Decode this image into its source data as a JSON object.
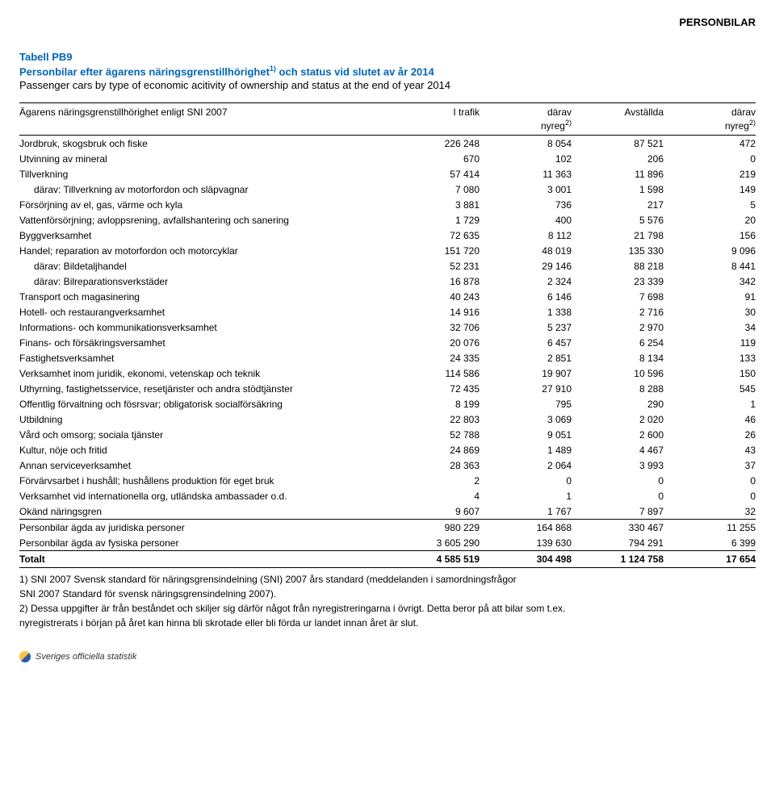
{
  "page_header": "PERSONBILAR",
  "title": "Tabell PB9",
  "subtitle_sv": "Personbilar efter ägarens näringsgrenstillhörighet",
  "subtitle_sv_sup": "1)",
  "subtitle_sv_tail": " och status vid slutet av år 2014",
  "subtitle_en": "Passenger cars by type of economic acitivity of ownership and status at the end of year 2014",
  "header": {
    "col1_a": "Ägarens näringsgrenstillhörighet enligt SNI 2007",
    "col2_a": "I trafik",
    "col3_a": "därav",
    "col4_a": "Avställda",
    "col5_a": "därav",
    "col3_b": "nyreg",
    "col3_b_sup": "2)",
    "col5_b": "nyreg",
    "col5_b_sup": "2)"
  },
  "rows": [
    {
      "label": "Jordbruk, skogsbruk och fiske",
      "v": [
        "226 248",
        "8 054",
        "87 521",
        "472"
      ]
    },
    {
      "label": "Utvinning av mineral",
      "v": [
        "670",
        "102",
        "206",
        "0"
      ]
    },
    {
      "label": "Tillverkning",
      "v": [
        "57 414",
        "11 363",
        "11 896",
        "219"
      ]
    },
    {
      "label": "därav: Tillverkning av motorfordon och släpvagnar",
      "indent": true,
      "v": [
        "7 080",
        "3 001",
        "1 598",
        "149"
      ]
    },
    {
      "label": "Försörjning av el, gas, värme och kyla",
      "v": [
        "3 881",
        "736",
        "217",
        "5"
      ]
    },
    {
      "label": "Vattenförsörjning; avloppsrening, avfallshantering och sanering",
      "v": [
        "1 729",
        "400",
        "5 576",
        "20"
      ]
    },
    {
      "label": "Byggverksamhet",
      "v": [
        "72 635",
        "8 112",
        "21 798",
        "156"
      ]
    },
    {
      "label": "Handel; reparation av motorfordon och motorcyklar",
      "v": [
        "151 720",
        "48 019",
        "135 330",
        "9 096"
      ]
    },
    {
      "label": "därav: Bildetaljhandel",
      "indent": true,
      "v": [
        "52 231",
        "29 146",
        "88 218",
        "8 441"
      ]
    },
    {
      "label": "därav: Bilreparationsverkstäder",
      "indent": true,
      "v": [
        "16 878",
        "2 324",
        "23 339",
        "342"
      ]
    },
    {
      "label": "Transport och magasinering",
      "v": [
        "40 243",
        "6 146",
        "7 698",
        "91"
      ]
    },
    {
      "label": "Hotell- och restaurangverksamhet",
      "v": [
        "14 916",
        "1 338",
        "2 716",
        "30"
      ]
    },
    {
      "label": "Informations- och kommunikationsverksamhet",
      "v": [
        "32 706",
        "5 237",
        "2 970",
        "34"
      ]
    },
    {
      "label": "Finans- och försäkringsversamhet",
      "v": [
        "20 076",
        "6 457",
        "6 254",
        "119"
      ]
    },
    {
      "label": "Fastighetsverksamhet",
      "v": [
        "24 335",
        "2 851",
        "8 134",
        "133"
      ]
    },
    {
      "label": "Verksamhet inom juridik, ekonomi, vetenskap och teknik",
      "v": [
        "114 586",
        "19 907",
        "10 596",
        "150"
      ]
    },
    {
      "label": "Uthyrning, fastighetsservice, resetjänster och andra stödtjänster",
      "v": [
        "72 435",
        "27 910",
        "8 288",
        "545"
      ]
    },
    {
      "label": "Offentlig förvaltning och fösrsvar; obligatorisk socialförsäkring",
      "v": [
        "8 199",
        "795",
        "290",
        "1"
      ]
    },
    {
      "label": "Utbildning",
      "v": [
        "22 803",
        "3 069",
        "2 020",
        "46"
      ]
    },
    {
      "label": "Vård och omsorg; sociala tjänster",
      "v": [
        "52 788",
        "9 051",
        "2 600",
        "26"
      ]
    },
    {
      "label": "Kultur, nöje och fritid",
      "v": [
        "24 869",
        "1 489",
        "4 467",
        "43"
      ]
    },
    {
      "label": "Annan serviceverksamhet",
      "v": [
        "28 363",
        "2 064",
        "3 993",
        "37"
      ]
    },
    {
      "label": "Förvärvsarbet i hushåll; hushållens produktion för eget bruk",
      "v": [
        "2",
        "0",
        "0",
        "0"
      ]
    },
    {
      "label": "Verksamhet vid internationella org, utländska ambassader o.d.",
      "v": [
        "4",
        "1",
        "0",
        "0"
      ]
    },
    {
      "label": "Okänd näringsgren",
      "v": [
        "9 607",
        "1 767",
        "7 897",
        "32"
      ]
    }
  ],
  "subtotals": [
    {
      "label": "Personbilar ägda av juridiska personer",
      "v": [
        "980 229",
        "164 868",
        "330 467",
        "11 255"
      ]
    },
    {
      "label": "Personbilar ägda av fysiska personer",
      "v": [
        "3 605 290",
        "139 630",
        "794 291",
        "6 399"
      ]
    }
  ],
  "totals": {
    "label": "Totalt",
    "v": [
      "4 585 519",
      "304 498",
      "1 124 758",
      "17 654"
    ]
  },
  "footnotes": [
    "1) SNI 2007 Svensk standard för näringsgrensindelning (SNI) 2007 års standard (meddelanden i samordningsfrågor",
    "SNI 2007 Standard för svensk näringsgrensindelning 2007).",
    "2) Dessa uppgifter är från beståndet och skiljer sig därför något från nyregistreringarna i övrigt. Detta beror på att bilar som t.ex.",
    "nyregistrerats i början på året kan hinna bli skrotade eller bli förda ur landet innan året är slut."
  ],
  "footer_text": "Sveriges officiella statistik"
}
